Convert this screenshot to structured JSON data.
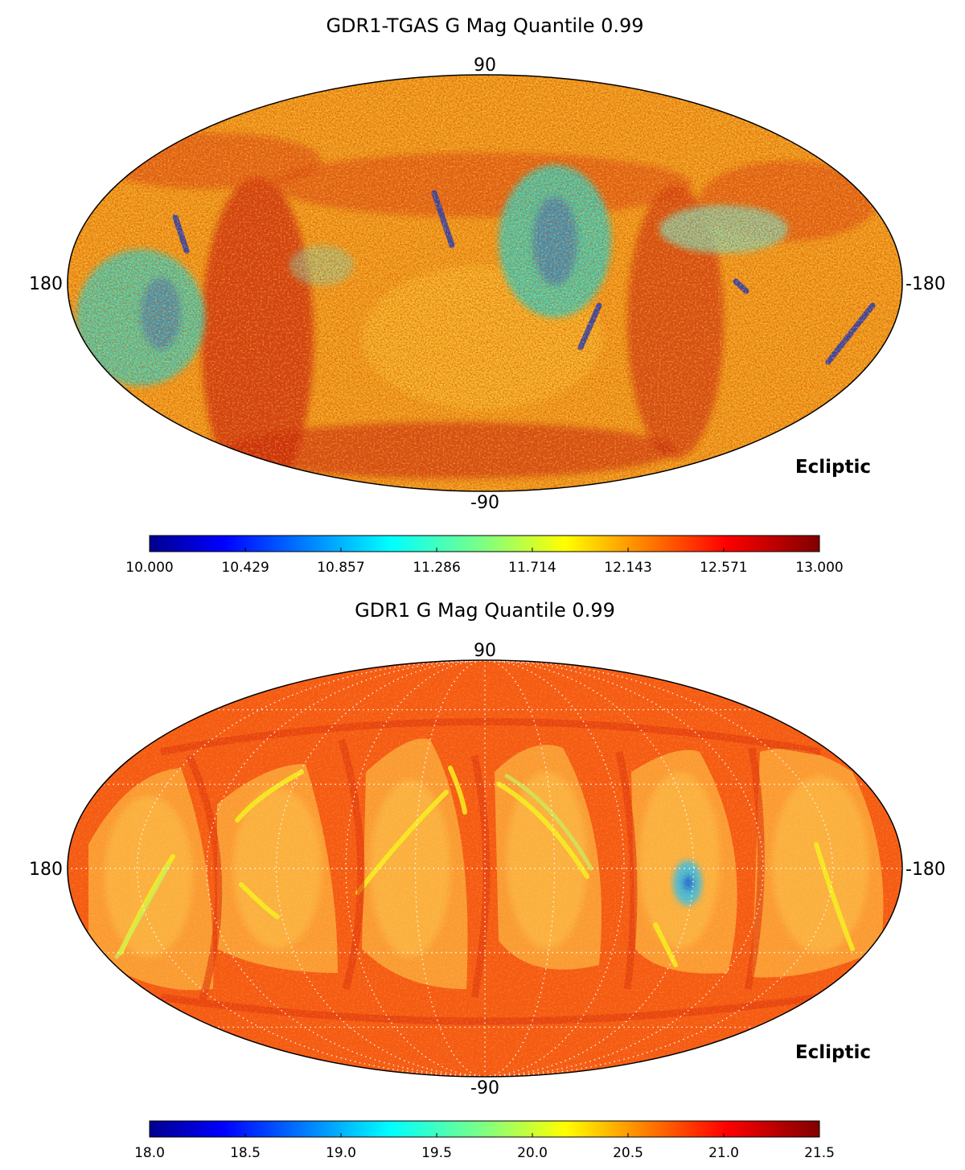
{
  "chart_data": [
    {
      "type": "heatmap",
      "projection": "mollweide",
      "title": "GDR1-TGAS G Mag Quantile 0.99",
      "lat_labels": {
        "top": "90",
        "bottom": "-90"
      },
      "lon_labels": {
        "left": "180",
        "right": "-180"
      },
      "coord_label": "Ecliptic",
      "grid": false,
      "colormap": "jet",
      "colorbar": {
        "min": 10.0,
        "max": 13.0,
        "ticks": [
          10.0,
          10.429,
          10.857,
          11.286,
          11.714,
          12.143,
          12.571,
          13.0
        ],
        "tick_labels": [
          "10.000",
          "10.429",
          "10.857",
          "11.286",
          "11.714",
          "12.143",
          "12.571",
          "13.000"
        ]
      }
    },
    {
      "type": "heatmap",
      "projection": "mollweide",
      "title": "GDR1 G Mag Quantile 0.99",
      "lat_labels": {
        "top": "90",
        "bottom": "-90"
      },
      "lon_labels": {
        "left": "180",
        "right": "-180"
      },
      "coord_label": "Ecliptic",
      "grid": true,
      "colormap": "jet",
      "colorbar": {
        "min": 18.0,
        "max": 21.5,
        "ticks": [
          18.0,
          18.5,
          19.0,
          19.5,
          20.0,
          20.5,
          21.0,
          21.5
        ],
        "tick_labels": [
          "18.0",
          "18.5",
          "19.0",
          "19.5",
          "20.0",
          "20.5",
          "21.0",
          "21.5"
        ]
      }
    }
  ]
}
